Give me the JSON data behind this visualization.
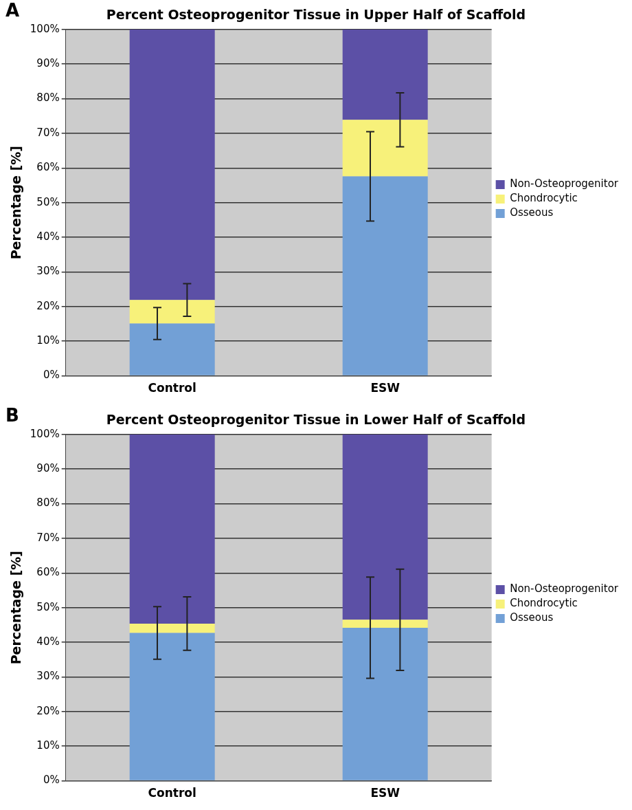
{
  "chart_data": [
    {
      "type": "bar",
      "title": "Percent Osteoprogenitor Tissue in Upper Half of Scaffold",
      "ylabel": "Percentage [%]",
      "annotations": [
        "A"
      ],
      "categories": [
        "Control",
        "ESW"
      ],
      "stacked": true,
      "series": [
        {
          "name": "Osseous",
          "color": "#72a0d6",
          "values": [
            15.1,
            57.6
          ],
          "errors": [
            4.6,
            12.9
          ]
        },
        {
          "name": "Chondrocytic",
          "color": "#f7f17a",
          "values": [
            6.8,
            16.3
          ],
          "errors": [
            4.7,
            7.8
          ]
        },
        {
          "name": "Non-Osteoprogenitor",
          "color": "#5c50a6",
          "values": [
            78.1,
            26.1
          ]
        }
      ],
      "ylim": [
        0,
        100
      ],
      "yticks": [
        {
          "value": 0,
          "label": "0%"
        },
        {
          "value": 10,
          "label": "10%"
        },
        {
          "value": 20,
          "label": "20%"
        },
        {
          "value": 30,
          "label": "30%"
        },
        {
          "value": 40,
          "label": "40%"
        },
        {
          "value": 50,
          "label": "50%"
        },
        {
          "value": 60,
          "label": "60%"
        },
        {
          "value": 70,
          "label": "70%"
        },
        {
          "value": 80,
          "label": "80%"
        },
        {
          "value": 90,
          "label": "90%"
        },
        {
          "value": 100,
          "label": "100%"
        }
      ],
      "grid": "y",
      "legend": "right"
    },
    {
      "type": "bar",
      "title": "Percent Osteoprogenitor Tissue in Lower Half of Scaffold",
      "ylabel": "Percentage [%]",
      "annotations": [
        "B"
      ],
      "categories": [
        "Control",
        "ESW"
      ],
      "stacked": true,
      "series": [
        {
          "name": "Osseous",
          "color": "#72a0d6",
          "values": [
            42.7,
            44.2
          ],
          "errors": [
            7.6,
            14.6
          ]
        },
        {
          "name": "Chondrocytic",
          "color": "#f7f17a",
          "values": [
            2.7,
            2.3
          ],
          "errors": [
            7.7,
            14.6
          ]
        },
        {
          "name": "Non-Osteoprogenitor",
          "color": "#5c50a6",
          "values": [
            54.6,
            53.5
          ]
        }
      ],
      "ylim": [
        0,
        100
      ],
      "yticks": [
        {
          "value": 0,
          "label": "0%"
        },
        {
          "value": 10,
          "label": "10%"
        },
        {
          "value": 20,
          "label": "20%"
        },
        {
          "value": 30,
          "label": "30%"
        },
        {
          "value": 40,
          "label": "40%"
        },
        {
          "value": 50,
          "label": "50%"
        },
        {
          "value": 60,
          "label": "60%"
        },
        {
          "value": 70,
          "label": "70%"
        },
        {
          "value": 80,
          "label": "80%"
        },
        {
          "value": 90,
          "label": "90%"
        },
        {
          "value": 100,
          "label": "100%"
        }
      ],
      "grid": "y",
      "legend": "right"
    }
  ]
}
